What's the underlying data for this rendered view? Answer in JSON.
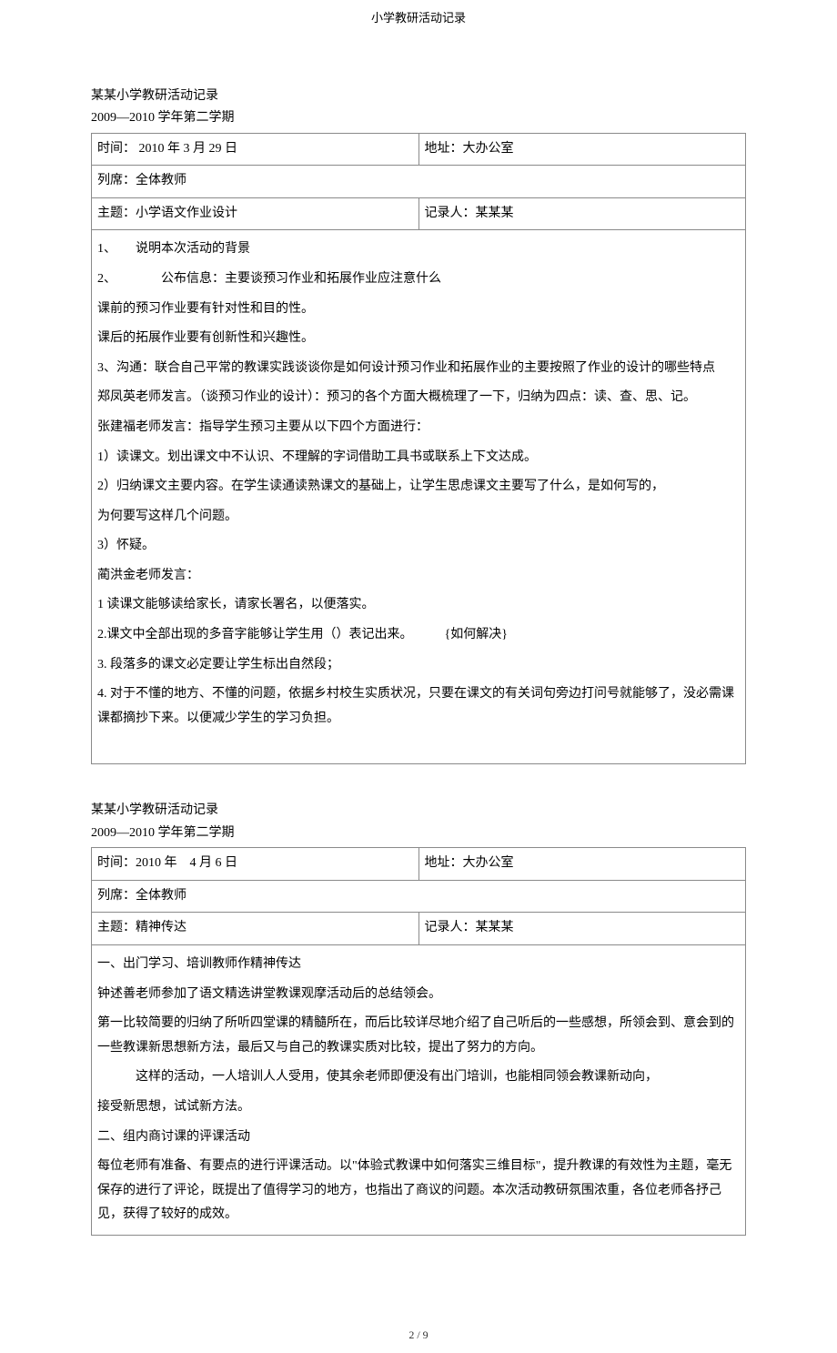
{
  "header_text": "小学教研活动记录",
  "footer_text": "2 / 9",
  "record1": {
    "title": "某某小学教研活动记录",
    "subtitle": "2009―2010 学年第二学期",
    "time": "时间： 2010 年 3 月 29 日",
    "place": "地址：大办公室",
    "attendees": "列席：全体教师",
    "topic": "主题：小学语文作业设计",
    "recorder": "记录人：某某某",
    "body": {
      "p1": "1、　　说明本次活动的背景",
      "p2": "2、　　　　公布信息：主要谈预习作业和拓展作业应注意什么",
      "p3": "课前的预习作业要有针对性和目的性。",
      "p4": "课后的拓展作业要有创新性和兴趣性。",
      "p5": "3、沟通：联合自己平常的教课实践谈谈你是如何设计预习作业和拓展作业的主要按照了作业的设计的哪些特点",
      "p6": "郑凤英老师发言。（谈预习作业的设计）：预习的各个方面大概梳理了一下，归纳为四点：读、查、思、记。",
      "p7": "张建福老师发言：指导学生预习主要从以下四个方面进行：",
      "p8": "1）读课文。划出课文中不认识、不理解的字词借助工具书或联系上下文达成。",
      "p9": "2）归纳课文主要内容。在学生读通读熟课文的基础上，让学生思虑课文主要写了什么，是如何写的，",
      "p10": "为何要写这样几个问题。",
      "p11": "3）怀疑。",
      "p12": "蔺洪金老师发言：",
      "p13": "1 读课文能够读给家长，请家长署名，以便落实。",
      "p14": "2.课文中全部出现的多音字能够让学生用（）表记出来。　　　{如何解决}",
      "p15": "3. 段落多的课文必定要让学生标出自然段；",
      "p16": "4. 对于不懂的地方、不懂的问题，依据乡村校生实质状况，只要在课文的有关词句旁边打问号就能够了，没必需课课都摘抄下来。以便减少学生的学习负担。"
    }
  },
  "record2": {
    "title": "某某小学教研活动记录",
    "subtitle": "2009―2010 学年第二学期",
    "time": "时间：2010 年　4 月 6 日",
    "place": "地址：大办公室",
    "attendees": "列席：全体教师",
    "topic": "主题：精神传达",
    "recorder": "记录人：某某某",
    "body": {
      "p1": "一、出门学习、培训教师作精神传达",
      "p2": "钟述善老师参加了语文精选讲堂教课观摩活动后的总结领会。",
      "p3": "第一比较简要的归纳了所听四堂课的精髓所在，而后比较详尽地介绍了自己听后的一些感想，所领会到、意会到的一些教课新思想新方法，最后又与自己的教课实质对比较，提出了努力的方向。",
      "p4": "　　　这样的活动，一人培训人人受用，使其余老师即便没有出门培训，也能相同领会教课新动向，",
      "p5": "接受新思想，试试新方法。",
      "p6": "二、组内商讨课的评课活动",
      "p7": "每位老师有准备、有要点的进行评课活动。以\"体验式教课中如何落实三维目标\"，提升教课的有效性为主题，毫无保存的进行了评论，既提出了值得学习的地方，也指出了商议的问题。本次活动教研氛围浓重，各位老师各抒己见，获得了较好的成效。"
    }
  }
}
